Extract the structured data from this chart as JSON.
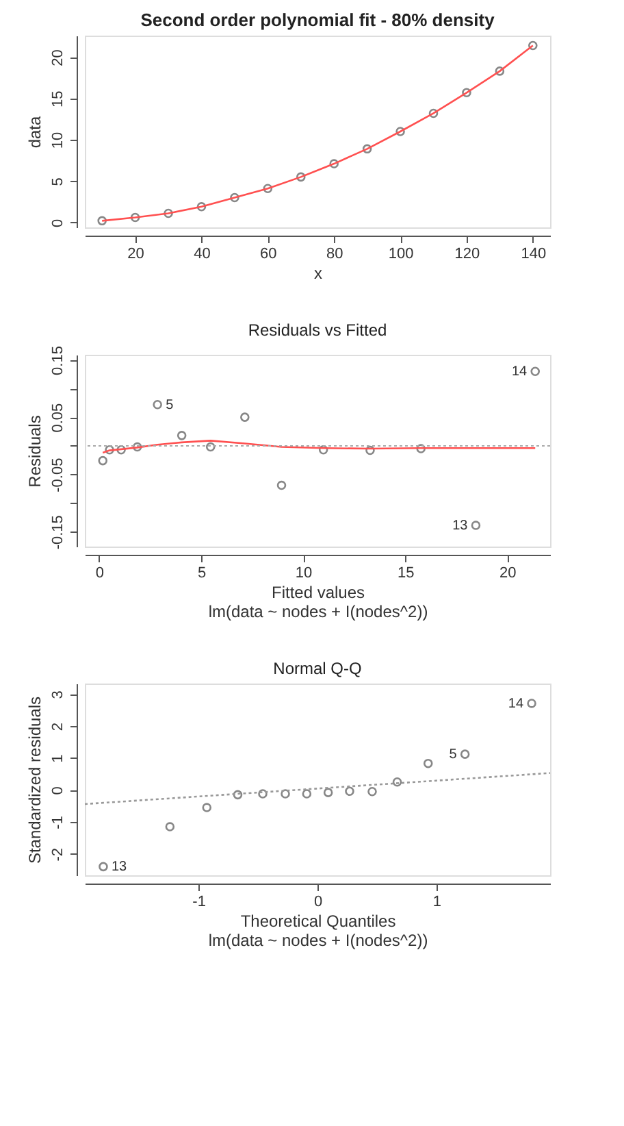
{
  "chart_data": [
    {
      "type": "scatter",
      "title": "Second order polynomial fit - 80% density",
      "xlabel": "x",
      "ylabel": "data",
      "marker": "circle",
      "grid": false,
      "xlim": [
        4.8,
        145.2
      ],
      "ylim": [
        -0.6,
        22.6
      ],
      "xticks": [
        20,
        40,
        60,
        80,
        100,
        120,
        140
      ],
      "yticks": [
        0,
        5,
        10,
        15,
        20
      ],
      "series": [
        {
          "type": "scatter",
          "color": "#555555",
          "x": [
            10,
            20,
            30,
            40,
            50,
            60,
            70,
            80,
            90,
            100,
            110,
            120,
            130,
            140
          ],
          "values": [
            0.2,
            0.6,
            1.1,
            1.9,
            3.0,
            4.1,
            5.5,
            7.1,
            8.9,
            11.0,
            13.2,
            15.7,
            18.3,
            21.4
          ]
        },
        {
          "type": "line",
          "color": "#ff5050",
          "line_style": "solid",
          "marker": "none",
          "x": [
            10,
            20,
            30,
            40,
            50,
            60,
            70,
            80,
            90,
            100,
            110,
            120,
            130,
            140
          ],
          "values": [
            0.2,
            0.6,
            1.1,
            1.9,
            3.0,
            4.1,
            5.5,
            7.1,
            8.9,
            11.0,
            13.2,
            15.7,
            18.3,
            21.4
          ]
        }
      ]
    },
    {
      "type": "scatter",
      "title": "Residuals vs Fitted",
      "xlabel": "Fitted values",
      "ylabel": "Residuals",
      "marker": "circle",
      "grid": false,
      "xlim": [
        -0.7,
        22.1
      ],
      "ylim": [
        -0.176,
        0.159
      ],
      "xticks": [
        0,
        5,
        10,
        15,
        20
      ],
      "yticks": [
        -0.15,
        {
          "value": -0.1,
          "label": null
        },
        -0.05,
        {
          "value": 0,
          "label": null
        },
        0.05,
        {
          "value": 0.1,
          "label": null
        },
        0.15
      ],
      "series": [
        {
          "type": "scatter",
          "color": "#555555",
          "x": [
            0.18,
            0.51,
            1.08,
            1.87,
            2.86,
            4.05,
            5.46,
            7.14,
            8.94,
            10.99,
            13.28,
            15.77,
            18.46,
            21.37
          ],
          "values": [
            -0.026,
            -0.007,
            -0.007,
            -0.002,
            0.072,
            0.018,
            -0.002,
            0.05,
            -0.069,
            -0.007,
            -0.008,
            -0.005,
            -0.139,
            0.13
          ]
        },
        {
          "type": "line",
          "color": "#ff5050",
          "line_style": "solid",
          "marker": "none",
          "x": [
            0.18,
            0.51,
            1.08,
            1.87,
            2.86,
            4.05,
            5.46,
            7.14,
            8.94,
            10.99,
            13.28,
            15.77,
            18.46,
            21.37
          ],
          "values": [
            -0.012,
            -0.008,
            -0.006,
            -0.003,
            0.002,
            0.006,
            0.009,
            0.004,
            -0.002,
            -0.004,
            -0.005,
            -0.004,
            -0.004,
            -0.004
          ]
        }
      ],
      "ref_lines": [
        {
          "axis": "y",
          "value": 0,
          "color": "#aaaaaa",
          "line_style": "dotted"
        }
      ],
      "annotations": [
        {
          "text": "5",
          "x": 2.86,
          "y": 0.072
        },
        {
          "text": "13",
          "x": 18.46,
          "y": -0.139
        },
        {
          "text": "14",
          "x": 21.37,
          "y": 0.13
        },
        "lm(data ~ nodes + I(nodes^2))"
      ]
    },
    {
      "type": "scatter",
      "title": "Normal Q-Q",
      "xlabel": "Theoretical Quantiles",
      "ylabel": "Standardized residuals",
      "marker": "circle",
      "grid": false,
      "xlim": [
        -1.955,
        1.955
      ],
      "ylim": [
        -2.67,
        3.33
      ],
      "xticks": [
        -1,
        0,
        1
      ],
      "yticks": [
        -2,
        -1,
        0,
        1,
        2,
        3
      ],
      "series": [
        {
          "type": "scatter",
          "color": "#555555",
          "x": [
            -1.8,
            -1.24,
            -0.93,
            -0.67,
            -0.46,
            -0.27,
            -0.09,
            0.09,
            0.27,
            0.46,
            0.67,
            0.93,
            1.24,
            1.8
          ],
          "values": [
            -2.4,
            -1.15,
            -0.55,
            -0.15,
            -0.12,
            -0.12,
            -0.12,
            -0.08,
            -0.04,
            -0.05,
            0.25,
            0.83,
            1.12,
            2.71
          ]
        },
        {
          "type": "line",
          "color": "#999999",
          "line_style": "dotted",
          "marker": "none",
          "x": [
            -1.955,
            1.955
          ],
          "values": [
            -0.44,
            0.53
          ]
        }
      ],
      "annotations": [
        {
          "text": "13",
          "x": -1.8,
          "y": -2.4
        },
        {
          "text": "5",
          "x": 1.24,
          "y": 1.12
        },
        {
          "text": "14",
          "x": 1.8,
          "y": 2.71
        },
        "lm(data ~ nodes + I(nodes^2))"
      ]
    }
  ]
}
